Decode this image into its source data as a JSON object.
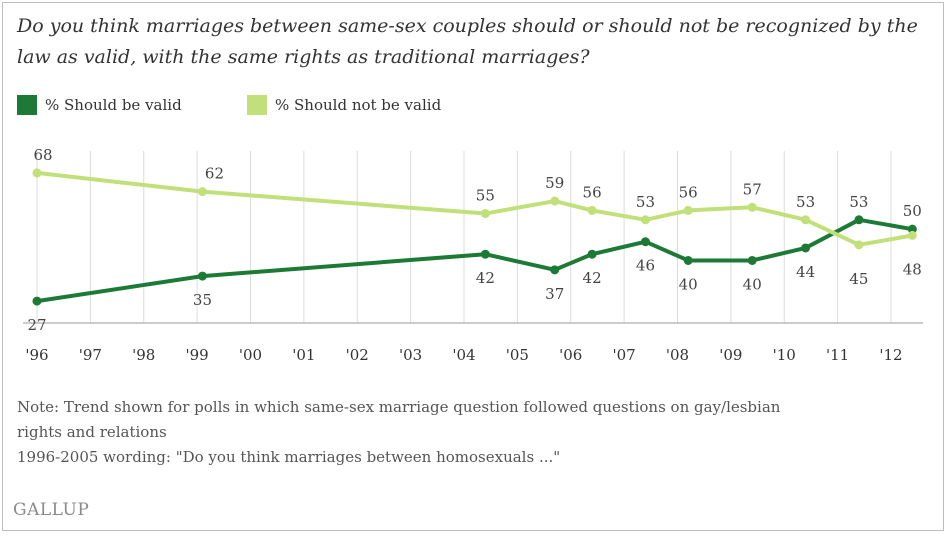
{
  "chart_data": {
    "type": "line",
    "title": "Do you think marriages between same-sex couples should or should not be recognized by the law as valid, with the same rights as traditional marriages?",
    "x_ticks": [
      "'96",
      "'97",
      "'98",
      "'99",
      "'00",
      "'01",
      "'02",
      "'03",
      "'04",
      "'05",
      "'06",
      "'07",
      "'08",
      "'09",
      "'10",
      "'11",
      "'12"
    ],
    "x_range": [
      1996,
      2012.6
    ],
    "y_range": [
      20,
      75
    ],
    "grid": "vertical",
    "legend_position": "top-left",
    "series": [
      {
        "name": "% Should be valid",
        "color": "#1d7a36",
        "x": [
          1996.0,
          1999.1,
          2004.4,
          2005.7,
          2006.4,
          2007.4,
          2008.2,
          2009.4,
          2010.4,
          2011.4,
          2012.4
        ],
        "values": [
          27,
          35,
          42,
          37,
          42,
          46,
          40,
          40,
          44,
          53,
          50
        ]
      },
      {
        "name": "% Should not be valid",
        "color": "#c2e07a",
        "x": [
          1996.0,
          1999.1,
          2004.4,
          2005.7,
          2006.4,
          2007.4,
          2008.2,
          2009.4,
          2010.4,
          2011.4,
          2012.4
        ],
        "values": [
          68,
          62,
          55,
          59,
          56,
          53,
          56,
          57,
          53,
          45,
          48
        ]
      }
    ]
  },
  "notes": [
    "Note: Trend shown for polls in which same-sex marriage question followed questions on gay/lesbian",
    "rights and relations",
    "1996-2005 wording: \"Do you think marriages between homosexuals ...\""
  ],
  "brand": "GALLUP"
}
